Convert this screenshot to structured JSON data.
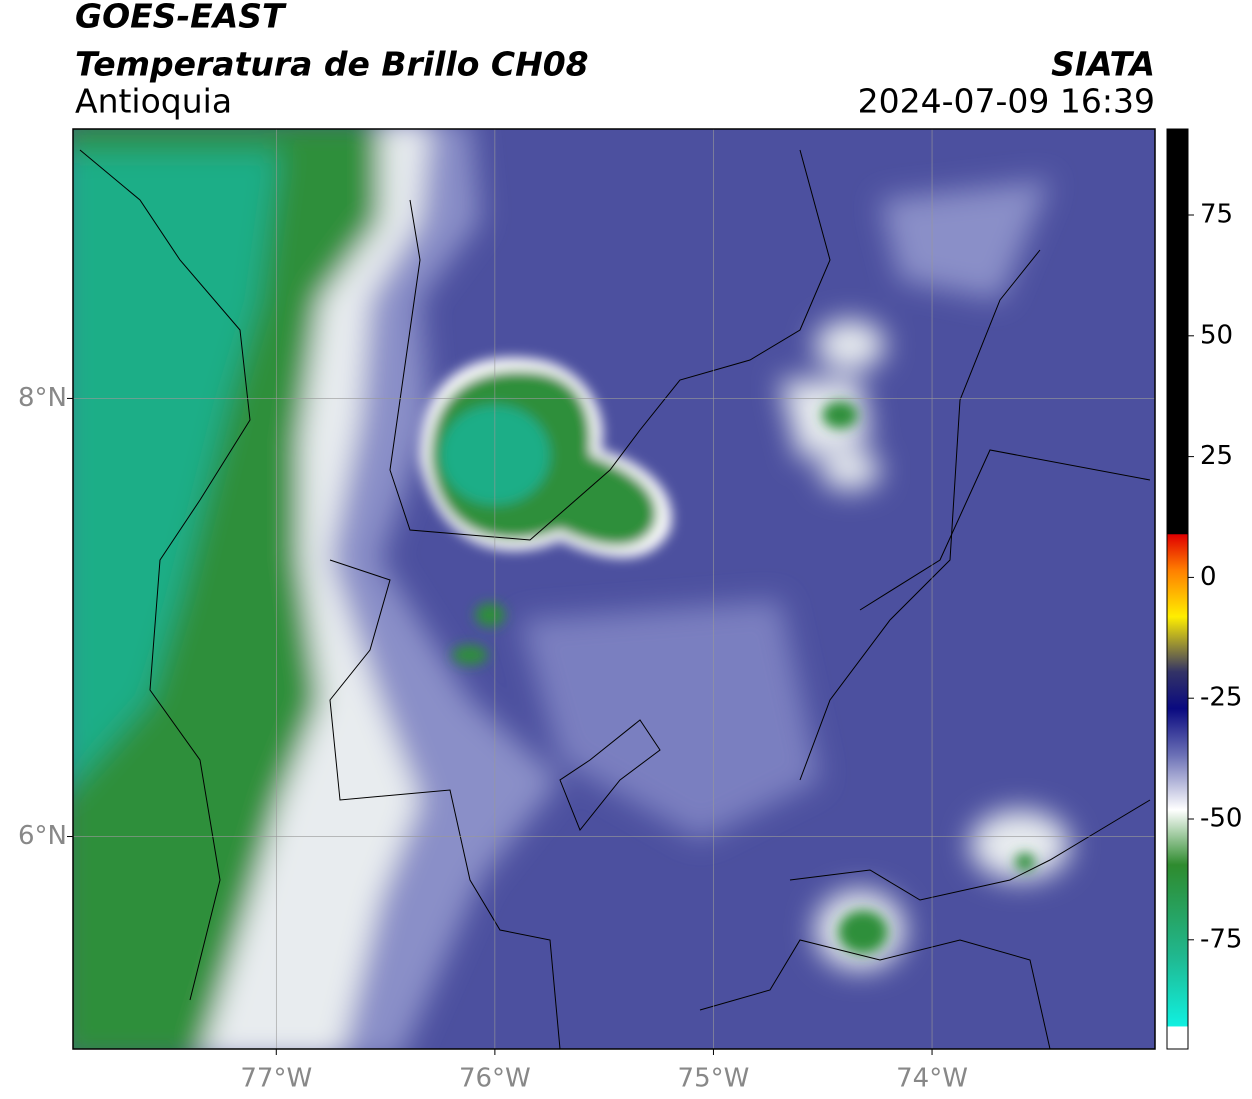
{
  "header": {
    "satellite": "GOES-EAST",
    "product": "Temperatura de Brillo CH08",
    "region": "Antioquia",
    "source": "SIATA",
    "datetime": "2024-07-09 16:39"
  },
  "map": {
    "lon_range": [
      -77.93,
      -72.98
    ],
    "lat_range": [
      5.03,
      9.23
    ],
    "lon_ticks": [
      {
        "value": -77,
        "label": "77°W"
      },
      {
        "value": -76,
        "label": "76°W"
      },
      {
        "value": -75,
        "label": "75°W"
      },
      {
        "value": -74,
        "label": "74°W"
      }
    ],
    "lat_ticks": [
      {
        "value": 8,
        "label": "8°N"
      },
      {
        "value": 6,
        "label": "6°N"
      }
    ]
  },
  "colorbar": {
    "range": [
      -97.6,
      92.8
    ],
    "ticks": [
      75,
      50,
      25,
      0,
      -25,
      -50,
      -75
    ]
  }
}
